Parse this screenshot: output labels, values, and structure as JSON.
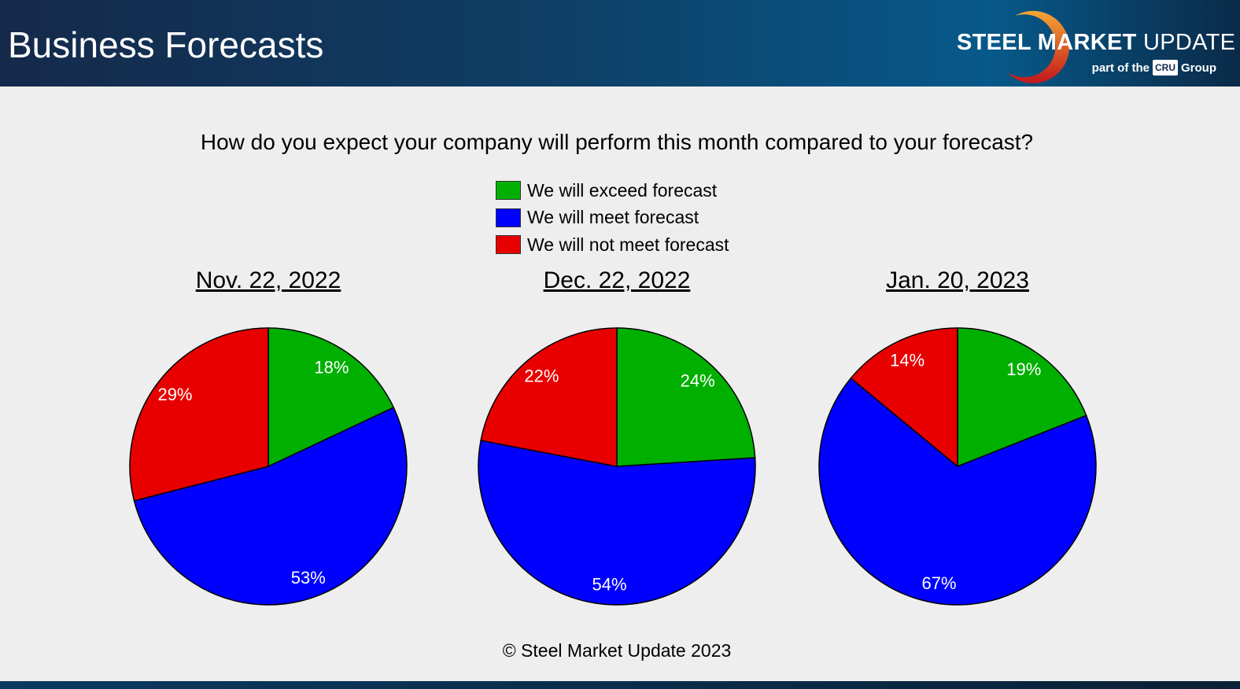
{
  "header": {
    "title": "Business Forecasts",
    "logo": {
      "text_bold": "STEEL MARKET",
      "text_light": "UPDATE",
      "sub_pre": "part of the",
      "sub_badge": "CRU",
      "sub_post": "Group"
    }
  },
  "chart_data": {
    "type": "pie",
    "title": "How do you expect your company will perform this month compared to your forecast?",
    "legend_position": "top-center",
    "categories": [
      "We will exceed forecast",
      "We will meet forecast",
      "We will not meet forecast"
    ],
    "colors": [
      "#00b000",
      "#0000ff",
      "#e80000"
    ],
    "charts": [
      {
        "title": "Nov. 22, 2022",
        "values": [
          18,
          53,
          29
        ],
        "labels": [
          "18%",
          "53%",
          "29%"
        ]
      },
      {
        "title": "Dec. 22, 2022",
        "values": [
          24,
          54,
          22
        ],
        "labels": [
          "24%",
          "54%",
          "22%"
        ]
      },
      {
        "title": "Jan. 20, 2023",
        "values": [
          19,
          67,
          14
        ],
        "labels": [
          "19%",
          "67%",
          "14%"
        ]
      }
    ]
  },
  "footer": {
    "copyright": "© Steel Market Update 2023"
  }
}
